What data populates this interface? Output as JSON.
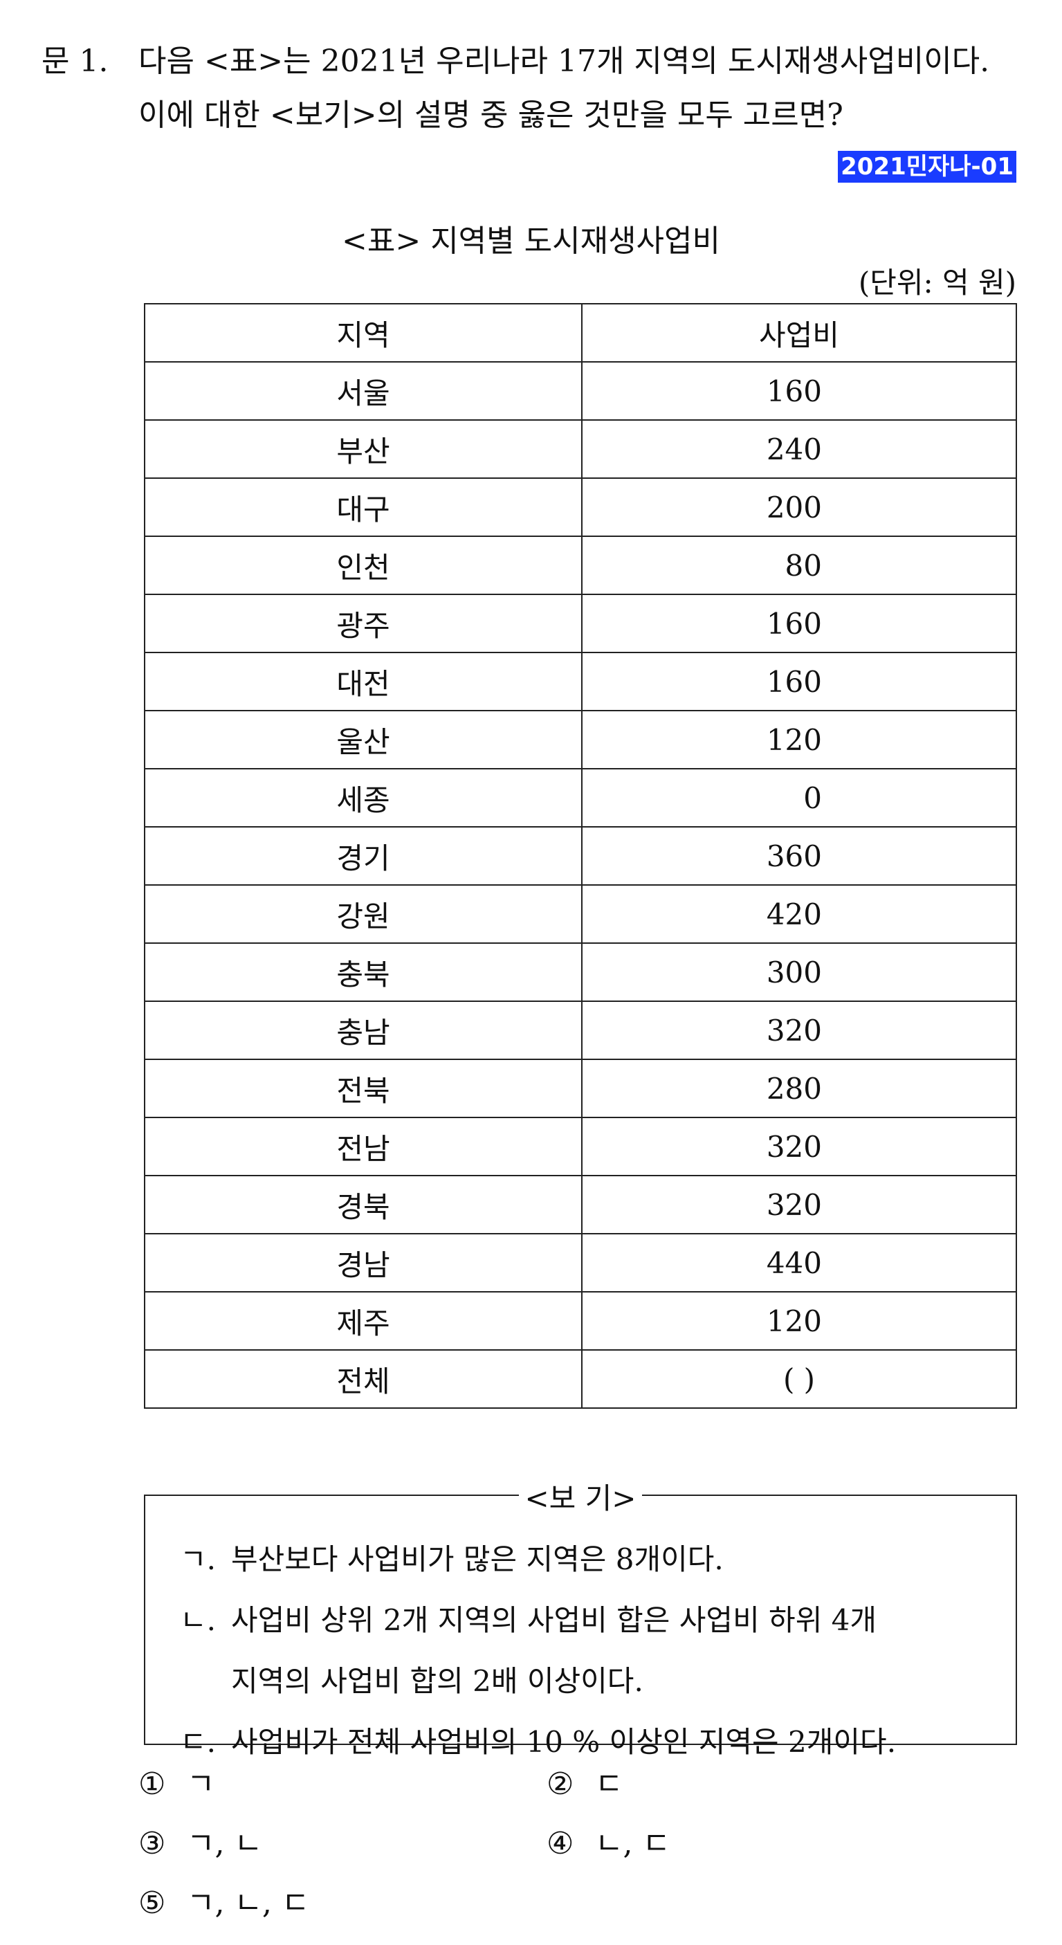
{
  "question": {
    "number": "문 1.",
    "line1": "다음 <표>는 2021년 우리나라 17개 지역의 도시재생사업비이다.",
    "line2": "이에 대한 <보기>의 설명 중 옳은 것만을 모두 고르면?"
  },
  "tag": "2021민자나-01",
  "table": {
    "title": "<표> 지역별 도시재생사업비",
    "unit": "(단위: 억 원)",
    "headers": [
      "지역",
      "사업비"
    ],
    "rows": [
      [
        "서울",
        "160"
      ],
      [
        "부산",
        "240"
      ],
      [
        "대구",
        "200"
      ],
      [
        "인천",
        "80"
      ],
      [
        "광주",
        "160"
      ],
      [
        "대전",
        "160"
      ],
      [
        "울산",
        "120"
      ],
      [
        "세종",
        "0"
      ],
      [
        "경기",
        "360"
      ],
      [
        "강원",
        "420"
      ],
      [
        "충북",
        "300"
      ],
      [
        "충남",
        "320"
      ],
      [
        "전북",
        "280"
      ],
      [
        "전남",
        "320"
      ],
      [
        "경북",
        "320"
      ],
      [
        "경남",
        "440"
      ],
      [
        "제주",
        "120"
      ]
    ],
    "total": {
      "label": "전체",
      "value": "(      )"
    }
  },
  "bogi": {
    "title": "<보  기>",
    "items": [
      {
        "mark": "ㄱ.",
        "lines": [
          "부산보다 사업비가 많은 지역은 8개이다."
        ]
      },
      {
        "mark": "ㄴ.",
        "lines": [
          "사업비 상위 2개 지역의 사업비 합은 사업비 하위 4개",
          "지역의 사업비 합의 2배 이상이다."
        ]
      },
      {
        "mark": "ㄷ.",
        "lines": [
          "사업비가 전체 사업비의 10 % 이상인 지역은 2개이다."
        ]
      }
    ]
  },
  "choices": [
    {
      "num": "①",
      "text": "ㄱ"
    },
    {
      "num": "②",
      "text": "ㄷ"
    },
    {
      "num": "③",
      "text": "ㄱ, ㄴ"
    },
    {
      "num": "④",
      "text": "ㄴ, ㄷ"
    },
    {
      "num": "⑤",
      "text": "ㄱ, ㄴ, ㄷ"
    }
  ]
}
